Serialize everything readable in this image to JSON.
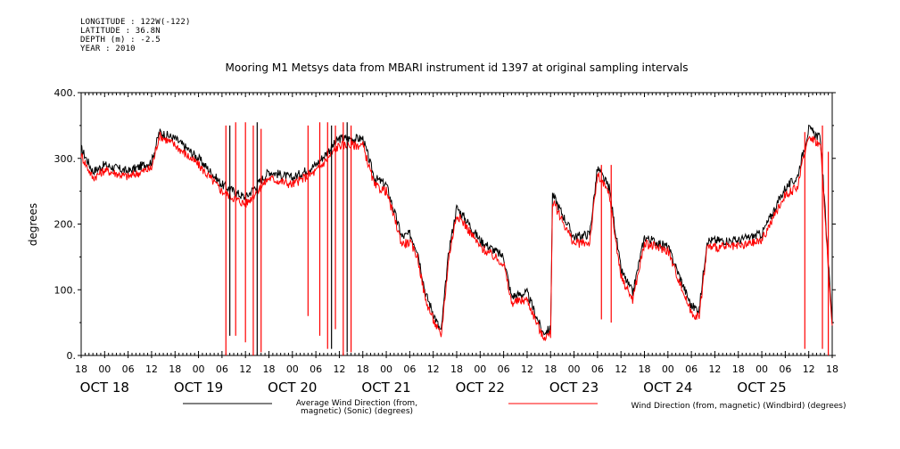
{
  "header": {
    "longitude": "LONGITUDE : 122W(-122)",
    "latitude": "LATITUDE : 36.8N",
    "depth": "DEPTH (m) : -2.5",
    "year": "YEAR : 2010"
  },
  "chart_data": {
    "type": "line",
    "title": "Mooring M1 Metsys data from MBARI instrument id 1397 at original sampling intervals",
    "xlabel": "",
    "ylabel": "degrees",
    "ylim": [
      0,
      400
    ],
    "y_ticks": [
      "0.",
      "100.",
      "200.",
      "300.",
      "400."
    ],
    "x_range_hours": "2010-10-17T18:00 to 2010-10-25T18:00",
    "hour_tick_labels": [
      "18",
      "00",
      "06",
      "12",
      "18",
      "00",
      "06",
      "12",
      "18",
      "00",
      "06",
      "12",
      "18",
      "00",
      "06",
      "12",
      "18",
      "00",
      "06",
      "12",
      "18",
      "00",
      "06",
      "12",
      "18",
      "00",
      "06",
      "12",
      "18",
      "00",
      "06",
      "12",
      "18"
    ],
    "day_labels": [
      {
        "label": "OCT 18",
        "at": "2010-10-18T00:00"
      },
      {
        "label": "OCT 19",
        "at": "2010-10-19T00:00"
      },
      {
        "label": "OCT 20",
        "at": "2010-10-20T00:00"
      },
      {
        "label": "OCT 21",
        "at": "2010-10-21T00:00"
      },
      {
        "label": "OCT 22",
        "at": "2010-10-22T00:00"
      },
      {
        "label": "OCT 23",
        "at": "2010-10-23T00:00"
      },
      {
        "label": "OCT 24",
        "at": "2010-10-24T00:00"
      },
      {
        "label": "OCT 25",
        "at": "2010-10-25T00:00"
      }
    ],
    "grid": false,
    "legend_position": "bottom",
    "series": [
      {
        "name": "Average Wind Direction (from, magnetic) (Sonic) (degrees)",
        "name_lines": [
          "Average Wind Direction (from,",
          "magnetic) (Sonic) (degrees)"
        ],
        "color": "#000000",
        "x": [
          "2010-10-17T18:00",
          "2010-10-17T21:00",
          "2010-10-18T00:00",
          "2010-10-18T06:00",
          "2010-10-18T12:00",
          "2010-10-18T14:00",
          "2010-10-18T18:00",
          "2010-10-19T00:00",
          "2010-10-19T06:00",
          "2010-10-19T12:00",
          "2010-10-19T18:00",
          "2010-10-20T00:00",
          "2010-10-20T06:00",
          "2010-10-20T12:00",
          "2010-10-20T18:00",
          "2010-10-20T21:00",
          "2010-10-21T00:00",
          "2010-10-21T04:00",
          "2010-10-21T06:00",
          "2010-10-21T08:00",
          "2010-10-21T10:00",
          "2010-10-21T12:00",
          "2010-10-21T14:00",
          "2010-10-21T16:00",
          "2010-10-21T18:00",
          "2010-10-21T20:00",
          "2010-10-22T00:00",
          "2010-10-22T06:00",
          "2010-10-22T08:00",
          "2010-10-22T12:00",
          "2010-10-22T16:00",
          "2010-10-22T18:00",
          "2010-10-22T18:30",
          "2010-10-23T00:00",
          "2010-10-23T04:00",
          "2010-10-23T06:00",
          "2010-10-23T09:00",
          "2010-10-23T12:00",
          "2010-10-23T15:00",
          "2010-10-23T18:00",
          "2010-10-24T00:00",
          "2010-10-24T04:00",
          "2010-10-24T06:00",
          "2010-10-24T08:00",
          "2010-10-24T10:00",
          "2010-10-24T18:00",
          "2010-10-25T00:00",
          "2010-10-25T06:00",
          "2010-10-25T09:00",
          "2010-10-25T12:00",
          "2010-10-25T15:00",
          "2010-10-25T18:00"
        ],
        "values": [
          315,
          280,
          290,
          280,
          295,
          340,
          330,
          300,
          260,
          240,
          280,
          270,
          290,
          330,
          330,
          270,
          260,
          180,
          185,
          160,
          95,
          65,
          35,
          160,
          225,
          210,
          175,
          150,
          90,
          95,
          35,
          40,
          245,
          180,
          185,
          285,
          255,
          130,
          95,
          180,
          165,
          105,
          75,
          70,
          175,
          175,
          185,
          255,
          270,
          345,
          330,
          50
        ]
      },
      {
        "name": "Wind Direction (from, magnetic) (Windbird) (degrees)",
        "name_lines": [
          "Wind Direction (from, magnetic) (Windbird) (degrees)"
        ],
        "color": "#ff0000",
        "x": [
          "2010-10-17T18:00",
          "2010-10-17T21:00",
          "2010-10-18T00:00",
          "2010-10-18T06:00",
          "2010-10-18T12:00",
          "2010-10-18T14:00",
          "2010-10-18T18:00",
          "2010-10-19T00:00",
          "2010-10-19T06:00",
          "2010-10-19T12:00",
          "2010-10-19T18:00",
          "2010-10-20T00:00",
          "2010-10-20T06:00",
          "2010-10-20T12:00",
          "2010-10-20T18:00",
          "2010-10-20T21:00",
          "2010-10-21T00:00",
          "2010-10-21T04:00",
          "2010-10-21T06:00",
          "2010-10-21T08:00",
          "2010-10-21T10:00",
          "2010-10-21T12:00",
          "2010-10-21T14:00",
          "2010-10-21T16:00",
          "2010-10-21T18:00",
          "2010-10-21T20:00",
          "2010-10-22T00:00",
          "2010-10-22T06:00",
          "2010-10-22T08:00",
          "2010-10-22T12:00",
          "2010-10-22T16:00",
          "2010-10-22T18:00",
          "2010-10-22T18:30",
          "2010-10-23T00:00",
          "2010-10-23T04:00",
          "2010-10-23T06:00",
          "2010-10-23T09:00",
          "2010-10-23T12:00",
          "2010-10-23T15:00",
          "2010-10-23T18:00",
          "2010-10-24T00:00",
          "2010-10-24T04:00",
          "2010-10-24T06:00",
          "2010-10-24T08:00",
          "2010-10-24T10:00",
          "2010-10-24T18:00",
          "2010-10-25T00:00",
          "2010-10-25T06:00",
          "2010-10-25T09:00",
          "2010-10-25T12:00",
          "2010-10-25T15:00",
          "2010-10-25T18:00"
        ],
        "values": [
          305,
          270,
          282,
          272,
          285,
          335,
          320,
          290,
          250,
          230,
          270,
          260,
          280,
          320,
          320,
          258,
          250,
          170,
          172,
          150,
          85,
          55,
          28,
          150,
          215,
          200,
          165,
          140,
          80,
          85,
          28,
          32,
          235,
          170,
          172,
          275,
          245,
          120,
          85,
          170,
          160,
          95,
          65,
          58,
          165,
          165,
          175,
          245,
          255,
          335,
          320,
          40
        ]
      }
    ],
    "spikes": [
      {
        "series": 1,
        "at": "2010-10-19T07:00",
        "low": 0,
        "high": 350
      },
      {
        "series": 1,
        "at": "2010-10-19T09:30",
        "low": 30,
        "high": 355
      },
      {
        "series": 1,
        "at": "2010-10-19T12:00",
        "low": 20,
        "high": 355
      },
      {
        "series": 1,
        "at": "2010-10-19T14:00",
        "low": 0,
        "high": 350
      },
      {
        "series": 1,
        "at": "2010-10-19T16:00",
        "low": 5,
        "high": 345
      },
      {
        "series": 1,
        "at": "2010-10-20T04:00",
        "low": 60,
        "high": 350
      },
      {
        "series": 1,
        "at": "2010-10-20T07:00",
        "low": 30,
        "high": 355
      },
      {
        "series": 1,
        "at": "2010-10-20T09:00",
        "low": 10,
        "high": 355
      },
      {
        "series": 1,
        "at": "2010-10-20T11:00",
        "low": 40,
        "high": 350
      },
      {
        "series": 1,
        "at": "2010-10-20T13:00",
        "low": 0,
        "high": 355
      },
      {
        "series": 1,
        "at": "2010-10-20T15:00",
        "low": 5,
        "high": 350
      },
      {
        "series": 1,
        "at": "2010-10-23T07:00",
        "low": 55,
        "high": 290
      },
      {
        "series": 1,
        "at": "2010-10-23T09:30",
        "low": 50,
        "high": 290
      },
      {
        "series": 1,
        "at": "2010-10-25T11:00",
        "low": 10,
        "high": 340
      },
      {
        "series": 1,
        "at": "2010-10-25T15:30",
        "low": 10,
        "high": 350
      },
      {
        "series": 1,
        "at": "2010-10-25T17:00",
        "low": 0,
        "high": 310
      },
      {
        "series": 0,
        "at": "2010-10-19T08:00",
        "low": 30,
        "high": 350
      },
      {
        "series": 0,
        "at": "2010-10-19T15:00",
        "low": 0,
        "high": 355
      },
      {
        "series": 0,
        "at": "2010-10-20T10:00",
        "low": 10,
        "high": 350
      },
      {
        "series": 0,
        "at": "2010-10-20T14:00",
        "low": 5,
        "high": 355
      }
    ]
  }
}
